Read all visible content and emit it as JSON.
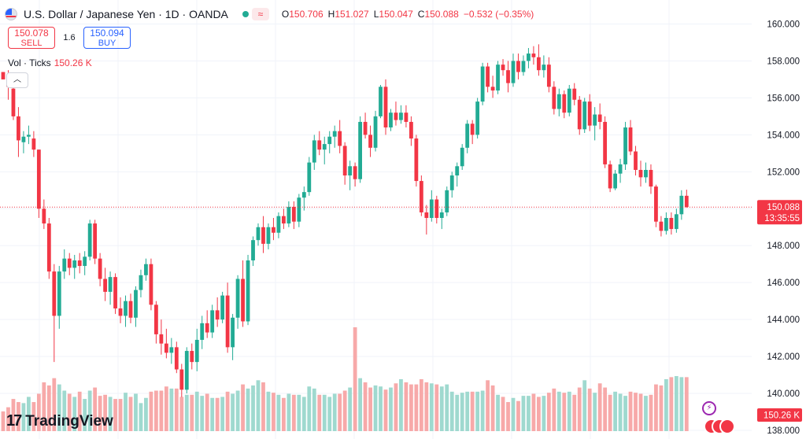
{
  "header": {
    "title": "U.S. Dollar / Japanese Yen · 1D · OANDA",
    "status_icon": "wave-icon",
    "ohlc": [
      {
        "k": "O",
        "v": "150.706"
      },
      {
        "k": "H",
        "v": "151.027"
      },
      {
        "k": "L",
        "v": "150.047"
      },
      {
        "k": "C",
        "v": "150.088"
      }
    ],
    "change": "−0.532 (−0.35%)"
  },
  "trade": {
    "sell_price": "150.078",
    "sell_label": "SELL",
    "spread": "1.6",
    "buy_price": "150.094",
    "buy_label": "BUY"
  },
  "volume": {
    "label": "Vol · Ticks",
    "value": "150.26 K",
    "axis_label": "150.26 K"
  },
  "price_badge": {
    "price": "150.088",
    "countdown": "13:35:55"
  },
  "brand": {
    "mark": "17",
    "name": "TradingView"
  },
  "colors": {
    "up": "#22ab94",
    "down": "#f23645",
    "vol_up": "#9fd9cf",
    "vol_down": "#f7a9a9",
    "grid": "#f0f3fa",
    "last_price_line": "#f23645"
  },
  "chart_data": {
    "type": "candlestick",
    "yaxis": {
      "ticks": [
        "138.000",
        "140.000",
        "142.000",
        "144.000",
        "146.000",
        "148.000",
        "150.000",
        "152.000",
        "154.000",
        "156.000",
        "158.000",
        "160.000"
      ],
      "ylim": [
        138,
        160
      ]
    },
    "candles": [
      [
        157.4,
        157.4,
        157.1,
        157.0
      ],
      [
        157.0,
        157.5,
        155.9,
        156.6
      ],
      [
        156.5,
        156.8,
        154.8,
        155.0
      ],
      [
        155.0,
        155.5,
        152.8,
        153.7
      ],
      [
        153.6,
        154.2,
        153.0,
        153.9
      ],
      [
        153.9,
        154.5,
        153.5,
        154.0
      ],
      [
        153.8,
        154.2,
        152.8,
        153.2
      ],
      [
        153.2,
        153.2,
        149.5,
        150.0
      ],
      [
        150.0,
        150.5,
        148.9,
        149.2
      ],
      [
        149.2,
        149.5,
        146.2,
        146.6
      ],
      [
        146.6,
        147.0,
        141.7,
        144.2
      ],
      [
        144.2,
        146.9,
        143.5,
        146.6
      ],
      [
        146.6,
        147.8,
        146.2,
        147.3
      ],
      [
        147.3,
        147.6,
        146.4,
        146.8
      ],
      [
        146.8,
        147.5,
        146.2,
        147.2
      ],
      [
        147.2,
        147.6,
        146.5,
        146.9
      ],
      [
        146.9,
        147.7,
        146.4,
        147.4
      ],
      [
        147.4,
        149.4,
        147.2,
        149.2
      ],
      [
        149.2,
        149.4,
        147.0,
        147.3
      ],
      [
        147.3,
        147.6,
        145.8,
        146.2
      ],
      [
        146.2,
        146.8,
        145.0,
        145.5
      ],
      [
        145.5,
        146.6,
        144.8,
        146.3
      ],
      [
        146.3,
        146.5,
        144.3,
        144.6
      ],
      [
        144.6,
        145.2,
        143.8,
        144.2
      ],
      [
        144.2,
        145.3,
        143.6,
        145.0
      ],
      [
        145.0,
        145.4,
        143.8,
        144.1
      ],
      [
        144.1,
        145.8,
        143.6,
        145.6
      ],
      [
        145.6,
        146.7,
        145.2,
        146.4
      ],
      [
        146.4,
        147.3,
        146.1,
        147.0
      ],
      [
        147.0,
        147.3,
        144.5,
        144.8
      ],
      [
        144.8,
        145.0,
        142.7,
        143.2
      ],
      [
        143.2,
        144.0,
        142.1,
        142.7
      ],
      [
        142.7,
        143.5,
        141.9,
        142.2
      ],
      [
        142.2,
        143.0,
        141.6,
        142.5
      ],
      [
        142.5,
        142.8,
        141.1,
        141.3
      ],
      [
        141.3,
        141.6,
        139.8,
        140.2
      ],
      [
        140.2,
        142.5,
        140.0,
        142.3
      ],
      [
        142.3,
        142.7,
        141.3,
        141.7
      ],
      [
        141.7,
        143.5,
        141.2,
        142.9
      ],
      [
        142.9,
        144.2,
        142.4,
        143.8
      ],
      [
        143.8,
        144.5,
        143.0,
        143.3
      ],
      [
        143.3,
        144.8,
        143.0,
        144.5
      ],
      [
        144.5,
        145.2,
        143.6,
        144.0
      ],
      [
        144.0,
        145.5,
        143.8,
        145.3
      ],
      [
        145.3,
        146.0,
        142.2,
        142.5
      ],
      [
        142.5,
        144.3,
        141.8,
        144.1
      ],
      [
        144.1,
        146.4,
        143.5,
        146.2
      ],
      [
        146.2,
        147.2,
        143.6,
        143.9
      ],
      [
        143.9,
        147.5,
        143.7,
        147.2
      ],
      [
        147.2,
        148.5,
        146.9,
        148.3
      ],
      [
        148.3,
        149.2,
        148.0,
        149.0
      ],
      [
        149.0,
        149.6,
        147.6,
        148.1
      ],
      [
        148.1,
        149.2,
        147.8,
        149.0
      ],
      [
        149.0,
        149.5,
        148.3,
        148.7
      ],
      [
        148.7,
        149.8,
        148.4,
        149.6
      ],
      [
        149.6,
        150.0,
        148.9,
        149.2
      ],
      [
        149.2,
        150.4,
        149.0,
        150.1
      ],
      [
        150.1,
        150.4,
        148.9,
        149.3
      ],
      [
        149.3,
        150.8,
        149.0,
        150.6
      ],
      [
        150.6,
        151.2,
        149.9,
        150.9
      ],
      [
        150.9,
        152.8,
        150.7,
        152.5
      ],
      [
        152.5,
        154.0,
        152.1,
        153.7
      ],
      [
        153.7,
        154.2,
        152.9,
        153.2
      ],
      [
        153.2,
        153.9,
        152.4,
        153.5
      ],
      [
        153.5,
        154.2,
        153.0,
        153.9
      ],
      [
        153.9,
        154.5,
        153.3,
        154.2
      ],
      [
        154.2,
        154.8,
        153.0,
        153.4
      ],
      [
        153.4,
        153.6,
        151.3,
        151.8
      ],
      [
        151.8,
        152.6,
        151.0,
        152.3
      ],
      [
        152.3,
        152.5,
        151.2,
        151.6
      ],
      [
        151.6,
        155.0,
        151.4,
        154.7
      ],
      [
        154.7,
        155.2,
        153.8,
        154.0
      ],
      [
        154.0,
        154.5,
        152.8,
        153.3
      ],
      [
        153.3,
        155.3,
        153.1,
        155.0
      ],
      [
        155.0,
        156.7,
        154.9,
        156.6
      ],
      [
        156.6,
        157.0,
        154.0,
        154.4
      ],
      [
        154.4,
        155.4,
        154.2,
        155.2
      ],
      [
        155.2,
        155.8,
        154.5,
        154.8
      ],
      [
        154.8,
        155.6,
        154.6,
        155.2
      ],
      [
        155.2,
        155.6,
        154.4,
        154.7
      ],
      [
        154.7,
        155.0,
        153.4,
        153.8
      ],
      [
        153.8,
        154.0,
        151.2,
        151.5
      ],
      [
        151.5,
        151.8,
        149.6,
        149.8
      ],
      [
        149.8,
        150.2,
        148.6,
        149.5
      ],
      [
        149.5,
        151.0,
        149.3,
        150.5
      ],
      [
        150.5,
        150.7,
        149.2,
        149.5
      ],
      [
        149.5,
        150.0,
        148.9,
        149.8
      ],
      [
        149.8,
        151.2,
        149.6,
        151.0
      ],
      [
        151.0,
        152.0,
        150.6,
        151.8
      ],
      [
        151.8,
        152.5,
        151.2,
        152.3
      ],
      [
        152.3,
        153.5,
        152.1,
        153.3
      ],
      [
        153.3,
        154.8,
        153.0,
        154.6
      ],
      [
        154.6,
        154.8,
        153.5,
        154.0
      ],
      [
        154.0,
        156.0,
        153.8,
        155.8
      ],
      [
        155.8,
        157.9,
        155.6,
        157.7
      ],
      [
        157.7,
        157.9,
        156.3,
        156.6
      ],
      [
        156.6,
        157.2,
        156.0,
        156.4
      ],
      [
        156.4,
        158.0,
        156.2,
        157.8
      ],
      [
        157.8,
        158.1,
        157.2,
        157.5
      ],
      [
        157.5,
        158.0,
        156.3,
        156.8
      ],
      [
        156.8,
        158.4,
        156.6,
        158.0
      ],
      [
        158.0,
        158.4,
        157.0,
        157.4
      ],
      [
        157.4,
        158.3,
        157.2,
        158.0
      ],
      [
        158.0,
        158.7,
        157.6,
        158.4
      ],
      [
        158.4,
        158.8,
        157.8,
        158.2
      ],
      [
        158.2,
        158.9,
        157.2,
        157.5
      ],
      [
        157.5,
        158.3,
        157.1,
        157.8
      ],
      [
        157.8,
        158.2,
        156.3,
        156.6
      ],
      [
        156.6,
        156.9,
        155.1,
        155.4
      ],
      [
        155.4,
        156.5,
        155.0,
        156.2
      ],
      [
        156.2,
        156.4,
        154.9,
        155.2
      ],
      [
        155.2,
        156.7,
        155.0,
        156.5
      ],
      [
        156.5,
        156.8,
        155.6,
        155.9
      ],
      [
        155.9,
        156.1,
        154.0,
        154.3
      ],
      [
        154.3,
        156.0,
        154.1,
        155.8
      ],
      [
        155.8,
        156.2,
        154.2,
        154.5
      ],
      [
        154.5,
        155.5,
        153.7,
        155.1
      ],
      [
        155.1,
        155.7,
        154.3,
        154.7
      ],
      [
        154.7,
        155.0,
        152.2,
        152.4
      ],
      [
        152.4,
        152.6,
        150.9,
        151.1
      ],
      [
        151.1,
        152.1,
        151.0,
        151.9
      ],
      [
        151.9,
        152.7,
        151.4,
        152.4
      ],
      [
        152.4,
        154.7,
        152.1,
        154.4
      ],
      [
        154.4,
        154.8,
        152.9,
        153.1
      ],
      [
        153.1,
        153.4,
        151.8,
        152.1
      ],
      [
        152.1,
        152.6,
        151.2,
        151.7
      ],
      [
        151.7,
        152.5,
        151.4,
        152.1
      ],
      [
        152.1,
        152.4,
        150.8,
        151.2
      ],
      [
        151.2,
        151.3,
        149.0,
        149.3
      ],
      [
        149.3,
        149.6,
        148.5,
        148.8
      ],
      [
        148.8,
        149.8,
        148.6,
        149.5
      ],
      [
        149.5,
        149.8,
        148.6,
        148.9
      ],
      [
        148.9,
        150.0,
        148.7,
        149.7
      ],
      [
        149.7,
        151.0,
        149.4,
        150.7
      ],
      [
        150.7,
        151.03,
        150.05,
        150.09
      ]
    ],
    "volume_levels": [
      0.19,
      0.23,
      0.31,
      0.28,
      0.27,
      0.33,
      0.28,
      0.36,
      0.47,
      0.44,
      0.51,
      0.45,
      0.39,
      0.36,
      0.33,
      0.38,
      0.31,
      0.39,
      0.42,
      0.34,
      0.35,
      0.33,
      0.31,
      0.31,
      0.37,
      0.33,
      0.36,
      0.27,
      0.32,
      0.38,
      0.39,
      0.39,
      0.43,
      0.41,
      0.41,
      0.33,
      0.35,
      0.35,
      0.38,
      0.34,
      0.36,
      0.32,
      0.32,
      0.33,
      0.38,
      0.36,
      0.39,
      0.45,
      0.41,
      0.44,
      0.49,
      0.47,
      0.38,
      0.37,
      0.35,
      0.32,
      0.36,
      0.35,
      0.35,
      0.33,
      0.43,
      0.41,
      0.35,
      0.35,
      0.33,
      0.36,
      0.36,
      0.39,
      0.42,
      1.0,
      0.51,
      0.47,
      0.42,
      0.44,
      0.43,
      0.4,
      0.42,
      0.46,
      0.5,
      0.47,
      0.45,
      0.45,
      0.5,
      0.47,
      0.46,
      0.45,
      0.43,
      0.45,
      0.38,
      0.35,
      0.37,
      0.38,
      0.38,
      0.38,
      0.39,
      0.49,
      0.44,
      0.35,
      0.33,
      0.28,
      0.32,
      0.29,
      0.34,
      0.34,
      0.36,
      0.33,
      0.34,
      0.37,
      0.41,
      0.38,
      0.37,
      0.38,
      0.35,
      0.42,
      0.49,
      0.41,
      0.37,
      0.46,
      0.42,
      0.35,
      0.38,
      0.36,
      0.34,
      0.38,
      0.37,
      0.36,
      0.34,
      0.35,
      0.45,
      0.44,
      0.5,
      0.52,
      0.53,
      0.52,
      0.52
    ]
  }
}
